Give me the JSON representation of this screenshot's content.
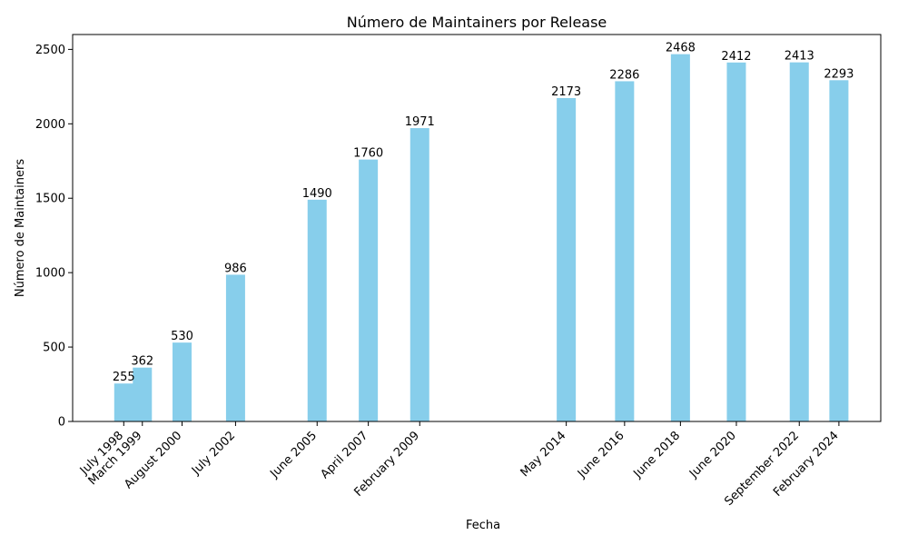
{
  "chart_data": {
    "type": "bar",
    "title": "Número de Maintainers por Release",
    "xlabel": "Fecha",
    "ylabel": "Número de Maintainers",
    "ylim": [
      0,
      2600
    ],
    "yticks": [
      0,
      500,
      1000,
      1500,
      2000,
      2500
    ],
    "x_axis_type": "date",
    "xlim": [
      "1996-09-01",
      "2025-08-01"
    ],
    "bar_color": "#87CEEB",
    "grid": false,
    "data_labels": true,
    "categories": [
      "July 1998",
      "March 1999",
      "August 2000",
      "July 2002",
      "June 2005",
      "April 2007",
      "February 2009",
      "May 2014",
      "June 2016",
      "June 2018",
      "June 2020",
      "September 2022",
      "February 2024"
    ],
    "dates": [
      "1998-07-01",
      "1999-03-01",
      "2000-08-01",
      "2002-07-01",
      "2005-06-01",
      "2007-04-01",
      "2009-02-01",
      "2014-05-01",
      "2016-06-01",
      "2018-06-01",
      "2020-06-01",
      "2022-09-01",
      "2024-02-01"
    ],
    "values": [
      255,
      362,
      530,
      986,
      1490,
      1760,
      1971,
      2173,
      2286,
      2468,
      2412,
      2413,
      2293
    ]
  }
}
